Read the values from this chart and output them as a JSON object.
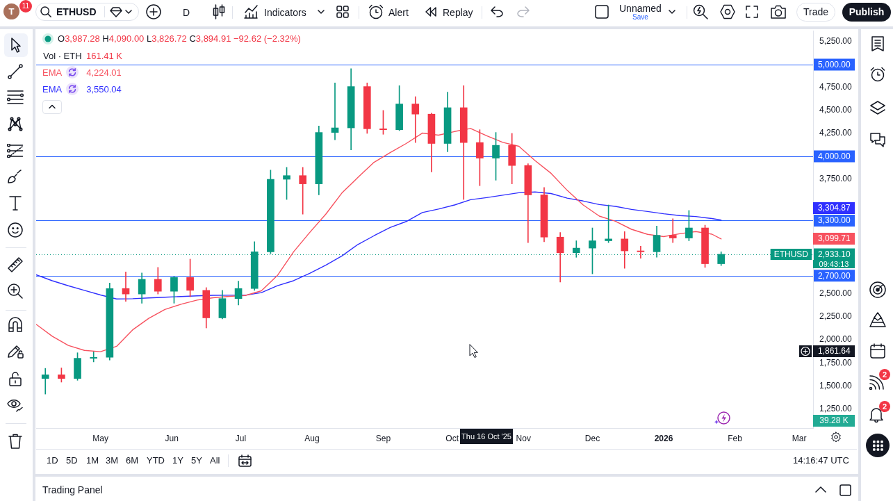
{
  "chart_data": {
    "type": "candlestick",
    "title": "ETHUSD",
    "x": [
      "2025-04-07",
      "2025-04-14",
      "2025-04-21",
      "2025-04-28",
      "2025-05-05",
      "2025-05-12",
      "2025-05-19",
      "2025-05-26",
      "2025-06-02",
      "2025-06-09",
      "2025-06-16",
      "2025-06-23",
      "2025-06-30",
      "2025-07-07",
      "2025-07-14",
      "2025-07-21",
      "2025-07-28",
      "2025-08-04",
      "2025-08-11",
      "2025-08-18",
      "2025-08-25",
      "2025-09-01",
      "2025-09-08",
      "2025-09-15",
      "2025-09-22",
      "2025-09-29",
      "2025-10-06",
      "2025-10-13",
      "2025-10-20",
      "2025-10-27",
      "2025-11-03",
      "2025-11-10",
      "2025-11-17",
      "2025-11-24",
      "2025-12-01",
      "2025-12-08",
      "2025-12-15",
      "2025-12-22",
      "2025-12-29",
      "2026-01-05",
      "2026-01-12",
      "2026-01-19",
      "2026-01-26"
    ],
    "series": [
      {
        "name": "ETHUSD",
        "type": "candlestick",
        "ohlc": [
          [
            1580,
            1690,
            1410,
            1620
          ],
          [
            1620,
            1695,
            1540,
            1580
          ],
          [
            1580,
            1860,
            1560,
            1800
          ],
          [
            1800,
            1870,
            1760,
            1810
          ],
          [
            1810,
            2620,
            1780,
            2560
          ],
          [
            2560,
            2740,
            2420,
            2500
          ],
          [
            2500,
            2730,
            2400,
            2660
          ],
          [
            2660,
            2790,
            2500,
            2530
          ],
          [
            2530,
            2690,
            2400,
            2680
          ],
          [
            2680,
            2880,
            2470,
            2540
          ],
          [
            2540,
            2570,
            2130,
            2240
          ],
          [
            2240,
            2540,
            2230,
            2450
          ],
          [
            2450,
            2640,
            2380,
            2560
          ],
          [
            2560,
            3070,
            2540,
            2960
          ],
          [
            2960,
            3850,
            2940,
            3750
          ],
          [
            3750,
            3880,
            3530,
            3790
          ],
          [
            3790,
            3880,
            3370,
            3700
          ],
          [
            3700,
            4330,
            3580,
            4260
          ],
          [
            4260,
            4800,
            4180,
            4310
          ],
          [
            4310,
            4955,
            4070,
            4760
          ],
          [
            4760,
            4800,
            4250,
            4300
          ],
          [
            4300,
            4500,
            4240,
            4290
          ],
          [
            4290,
            4770,
            4280,
            4570
          ],
          [
            4570,
            4650,
            4150,
            4460
          ],
          [
            4460,
            4470,
            3830,
            4140
          ],
          [
            4140,
            4700,
            4050,
            4530
          ],
          [
            4530,
            4770,
            3530,
            4150
          ],
          [
            4150,
            4290,
            3680,
            3980
          ],
          [
            3980,
            4260,
            3740,
            4120
          ],
          [
            4120,
            4250,
            3700,
            3900
          ],
          [
            3900,
            3920,
            3060,
            3580
          ],
          [
            3580,
            3660,
            3070,
            3120
          ],
          [
            3120,
            3170,
            2630,
            2950
          ],
          [
            2950,
            3080,
            2900,
            3000
          ],
          [
            3000,
            3220,
            2720,
            3080
          ],
          [
            3080,
            3470,
            3060,
            3100
          ],
          [
            3100,
            3180,
            2780,
            2970
          ],
          [
            2970,
            3020,
            2890,
            2960
          ],
          [
            2960,
            3240,
            2900,
            3140
          ],
          [
            3140,
            3320,
            3060,
            3110
          ],
          [
            3110,
            3410,
            3080,
            3220
          ],
          [
            3220,
            3250,
            2790,
            2830
          ],
          [
            2830,
            2960,
            2810,
            2933.1
          ]
        ],
        "colors": [
          "#089981",
          "#f23645",
          "#089981",
          "#089981",
          "#089981",
          "#f23645",
          "#089981",
          "#f23645",
          "#089981",
          "#f23645",
          "#f23645",
          "#089981",
          "#089981",
          "#089981",
          "#089981",
          "#089981",
          "#f23645",
          "#089981",
          "#089981",
          "#089981",
          "#f23645",
          "#f23645",
          "#089981",
          "#f23645",
          "#f23645",
          "#089981",
          "#f23645",
          "#f23645",
          "#089981",
          "#f23645",
          "#f23645",
          "#f23645",
          "#f23645",
          "#089981",
          "#089981",
          "#089981",
          "#f23645",
          "#f23645",
          "#089981",
          "#f23645",
          "#089981",
          "#f23645",
          "#089981"
        ]
      },
      {
        "name": "EMA",
        "type": "line",
        "color": "#f7525f",
        "x": [
          "2025-04-03",
          "2025-04-10",
          "2025-04-17",
          "2025-04-24",
          "2025-05-01",
          "2025-05-08",
          "2025-05-15",
          "2025-05-22",
          "2025-05-29",
          "2025-06-05",
          "2025-06-12",
          "2025-06-19",
          "2025-06-26",
          "2025-07-03",
          "2025-07-10",
          "2025-07-17",
          "2025-07-24",
          "2025-07-31",
          "2025-08-07",
          "2025-08-14",
          "2025-08-21",
          "2025-08-28",
          "2025-09-04",
          "2025-09-11",
          "2025-09-18",
          "2025-09-25",
          "2025-10-02",
          "2025-10-09",
          "2025-10-16",
          "2025-10-23",
          "2025-10-30",
          "2025-11-06",
          "2025-11-13",
          "2025-11-20",
          "2025-11-27",
          "2025-12-04",
          "2025-12-11",
          "2025-12-18",
          "2025-12-25",
          "2026-01-01",
          "2026-01-08",
          "2026-01-15",
          "2026-01-22",
          "2026-01-26"
        ],
        "values": [
          2170,
          2040,
          1940,
          1886,
          1872,
          1930,
          2110,
          2235,
          2332,
          2388,
          2434,
          2459,
          2475,
          2484,
          2535,
          2703,
          2960,
          3170,
          3370,
          3600,
          3770,
          3935,
          4040,
          4140,
          4253,
          4231,
          4270,
          4304,
          4224,
          4152,
          4110,
          3955,
          3815,
          3630,
          3470,
          3349,
          3293,
          3205,
          3150,
          3126,
          3157,
          3180,
          3152,
          3100
        ]
      },
      {
        "name": "EMA",
        "type": "line",
        "color": "#3030ff",
        "x": [
          "2025-04-03",
          "2025-04-10",
          "2025-04-17",
          "2025-04-24",
          "2025-05-01",
          "2025-05-08",
          "2025-05-15",
          "2025-05-22",
          "2025-05-29",
          "2025-06-05",
          "2025-06-12",
          "2025-06-19",
          "2025-06-26",
          "2025-07-03",
          "2025-07-10",
          "2025-07-17",
          "2025-07-24",
          "2025-07-31",
          "2025-08-07",
          "2025-08-14",
          "2025-08-21",
          "2025-08-28",
          "2025-09-04",
          "2025-09-11",
          "2025-09-18",
          "2025-09-25",
          "2025-10-02",
          "2025-10-09",
          "2025-10-16",
          "2025-10-23",
          "2025-10-30",
          "2025-11-06",
          "2025-11-13",
          "2025-11-20",
          "2025-11-27",
          "2025-12-04",
          "2025-12-11",
          "2025-12-18",
          "2025-12-25",
          "2026-01-01",
          "2026-01-08",
          "2026-01-15",
          "2026-01-22",
          "2026-01-26"
        ],
        "values": [
          2709,
          2645,
          2590,
          2540,
          2490,
          2446,
          2449,
          2457,
          2465,
          2473,
          2480,
          2486,
          2487,
          2487,
          2515,
          2591,
          2645,
          2725,
          2815,
          2915,
          3040,
          3135,
          3225,
          3290,
          3388,
          3425,
          3470,
          3528,
          3550,
          3577,
          3603,
          3612,
          3595,
          3545,
          3513,
          3475,
          3455,
          3422,
          3399,
          3374,
          3354,
          3344,
          3322,
          3305
        ]
      }
    ],
    "xlim": [
      "2025-04-03",
      "2026-03-07"
    ],
    "xticks": [
      {
        "value": "2025-05-01",
        "label": "May"
      },
      {
        "value": "2025-06-01",
        "label": "Jun"
      },
      {
        "value": "2025-07-01",
        "label": "Jul"
      },
      {
        "value": "2025-08-01",
        "label": "Aug"
      },
      {
        "value": "2025-09-01",
        "label": "Sep"
      },
      {
        "value": "2025-10-01",
        "label": "Oct"
      },
      {
        "value": "2025-11-01",
        "label": "Nov"
      },
      {
        "value": "2025-12-01",
        "label": "Dec"
      },
      {
        "value": "2026-01-01",
        "label": "2026"
      },
      {
        "value": "2026-02-01",
        "label": "Feb"
      },
      {
        "value": "2026-03-01",
        "label": "Mar"
      }
    ],
    "ylim": [
      1040,
      5370
    ],
    "yticks": [
      {
        "value": 1250,
        "label": "1,250.00"
      },
      {
        "value": 1500,
        "label": "1,500.00"
      },
      {
        "value": 1750,
        "label": "1,750.00"
      },
      {
        "value": 2000,
        "label": "2,000.00"
      },
      {
        "value": 2250,
        "label": "2,250.00"
      },
      {
        "value": 2500,
        "label": "2,500.00"
      },
      {
        "value": 3750,
        "label": "3,750.00"
      },
      {
        "value": 4250,
        "label": "4,250.00"
      },
      {
        "value": 4500,
        "label": "4,500.00"
      },
      {
        "value": 4750,
        "label": "4,750.00"
      },
      {
        "value": 5250,
        "label": "5,250.00"
      }
    ],
    "ref_lines": [
      {
        "axis": "y",
        "value": 5000,
        "label": "5,000.00",
        "color": "#2962ff"
      },
      {
        "axis": "y",
        "value": 4000,
        "label": "4,000.00",
        "color": "#2962ff"
      },
      {
        "axis": "y",
        "value": 3300,
        "label": "3,300.00",
        "color": "#2962ff"
      },
      {
        "axis": "y",
        "value": 2700,
        "label": "2,700.00",
        "color": "#2962ff"
      },
      {
        "axis": "y",
        "value": 2933.1,
        "label": "2,933.10",
        "color": "#089981",
        "line_style": "dotted"
      }
    ],
    "annotations": [
      "O3,987.28 H4,090.00 L3,826.72 C3,894.91 −92.62 (−2.32%)",
      "Vol · ETH",
      "161.41 K",
      "4,224.01",
      "3,550.04",
      "39.28 K",
      "09:43:13",
      "11",
      "T",
      "D",
      "Indicators",
      "Alert",
      "Replay",
      "Unnamed",
      "Save",
      "Trade",
      "Publish",
      "1D",
      "5D",
      "1M",
      "3M",
      "6M",
      "YTD",
      "1Y",
      "5Y",
      "All",
      "14:16:47 UTC",
      "Trading Panel",
      "2",
      "2",
      "3,304.87",
      "3,099.71",
      "1,861.64",
      "Thu 16 Oct '25"
    ],
    "legend": "top left"
  }
}
